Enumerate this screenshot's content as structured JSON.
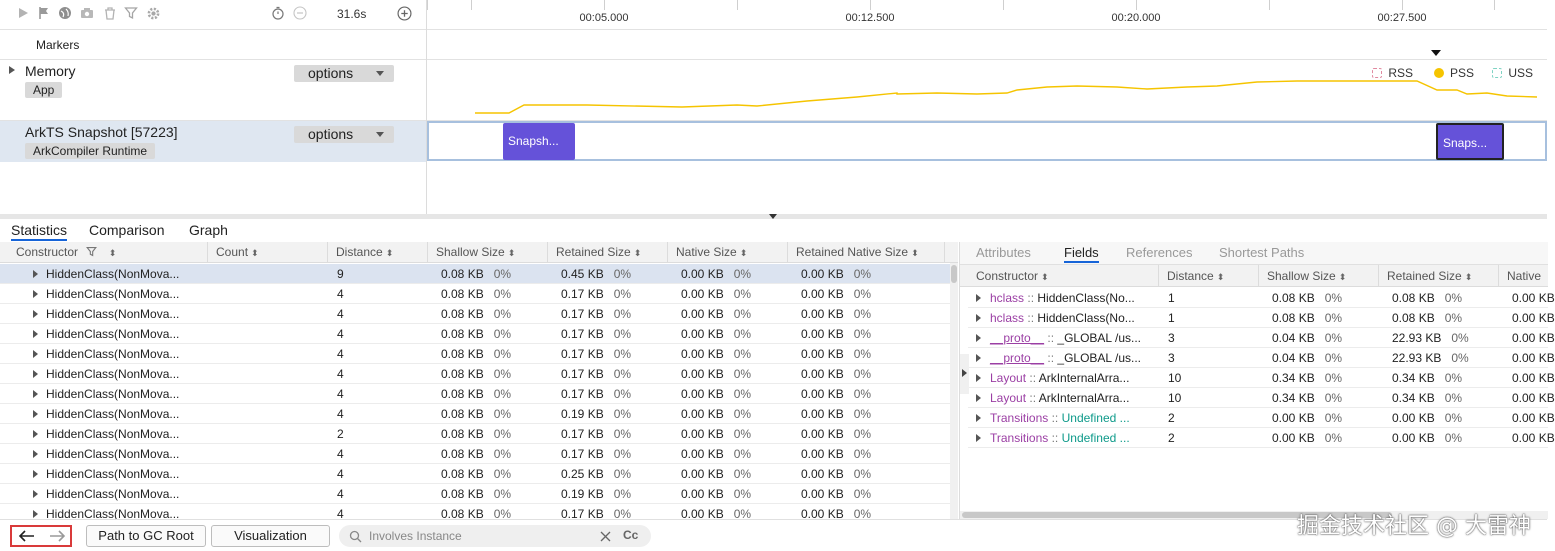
{
  "toolbar": {
    "duration": "31.6s",
    "icons": [
      "play-icon",
      "flag-icon",
      "globe-icon",
      "camera-icon",
      "delete-icon",
      "filter-icon",
      "gear-icon",
      "timer-icon",
      "minus-circle-icon",
      "plus-circle-icon"
    ]
  },
  "ruler": {
    "ticks": [
      "00:05.000",
      "00:12.500",
      "00:20.000",
      "00:27.500"
    ]
  },
  "lanes": {
    "markers_label": "Markers",
    "memory": {
      "title": "Memory",
      "tag": "App",
      "options": "options"
    },
    "snapshot": {
      "title": "ArkTS Snapshot [57223]",
      "tag": "ArkCompiler Runtime",
      "options": "options",
      "blocks": [
        "Snapsh...",
        "Snaps..."
      ]
    }
  },
  "legend": [
    {
      "label": "RSS",
      "color": "#e08aa0",
      "filled": false
    },
    {
      "label": "PSS",
      "color": "#f5c400",
      "filled": true
    },
    {
      "label": "USS",
      "color": "#7fd3c3",
      "filled": false
    }
  ],
  "memory_line_color": "#f5c400",
  "bottom_tabs": [
    "Statistics",
    "Comparison",
    "Graph"
  ],
  "left_table": {
    "columns": [
      "Constructor",
      "Count",
      "Distance",
      "Shallow Size",
      "Retained Size",
      "Native Size",
      "Retained Native Size"
    ],
    "rows": [
      {
        "name": "HiddenClass(NonMova...",
        "count": "",
        "distance": "9",
        "shallow": "0.08 KB",
        "shallow_pct": "0%",
        "retained": "0.45 KB",
        "retained_pct": "0%",
        "native": "0.00 KB",
        "native_pct": "0%",
        "rnative": "0.00 KB",
        "rnative_pct": "0%"
      },
      {
        "name": "HiddenClass(NonMova...",
        "count": "",
        "distance": "4",
        "shallow": "0.08 KB",
        "shallow_pct": "0%",
        "retained": "0.17 KB",
        "retained_pct": "0%",
        "native": "0.00 KB",
        "native_pct": "0%",
        "rnative": "0.00 KB",
        "rnative_pct": "0%"
      },
      {
        "name": "HiddenClass(NonMova...",
        "count": "",
        "distance": "4",
        "shallow": "0.08 KB",
        "shallow_pct": "0%",
        "retained": "0.17 KB",
        "retained_pct": "0%",
        "native": "0.00 KB",
        "native_pct": "0%",
        "rnative": "0.00 KB",
        "rnative_pct": "0%"
      },
      {
        "name": "HiddenClass(NonMova...",
        "count": "",
        "distance": "4",
        "shallow": "0.08 KB",
        "shallow_pct": "0%",
        "retained": "0.17 KB",
        "retained_pct": "0%",
        "native": "0.00 KB",
        "native_pct": "0%",
        "rnative": "0.00 KB",
        "rnative_pct": "0%"
      },
      {
        "name": "HiddenClass(NonMova...",
        "count": "",
        "distance": "4",
        "shallow": "0.08 KB",
        "shallow_pct": "0%",
        "retained": "0.17 KB",
        "retained_pct": "0%",
        "native": "0.00 KB",
        "native_pct": "0%",
        "rnative": "0.00 KB",
        "rnative_pct": "0%"
      },
      {
        "name": "HiddenClass(NonMova...",
        "count": "",
        "distance": "4",
        "shallow": "0.08 KB",
        "shallow_pct": "0%",
        "retained": "0.17 KB",
        "retained_pct": "0%",
        "native": "0.00 KB",
        "native_pct": "0%",
        "rnative": "0.00 KB",
        "rnative_pct": "0%"
      },
      {
        "name": "HiddenClass(NonMova...",
        "count": "",
        "distance": "4",
        "shallow": "0.08 KB",
        "shallow_pct": "0%",
        "retained": "0.17 KB",
        "retained_pct": "0%",
        "native": "0.00 KB",
        "native_pct": "0%",
        "rnative": "0.00 KB",
        "rnative_pct": "0%"
      },
      {
        "name": "HiddenClass(NonMova...",
        "count": "",
        "distance": "4",
        "shallow": "0.08 KB",
        "shallow_pct": "0%",
        "retained": "0.19 KB",
        "retained_pct": "0%",
        "native": "0.00 KB",
        "native_pct": "0%",
        "rnative": "0.00 KB",
        "rnative_pct": "0%"
      },
      {
        "name": "HiddenClass(NonMova...",
        "count": "",
        "distance": "2",
        "shallow": "0.08 KB",
        "shallow_pct": "0%",
        "retained": "0.17 KB",
        "retained_pct": "0%",
        "native": "0.00 KB",
        "native_pct": "0%",
        "rnative": "0.00 KB",
        "rnative_pct": "0%"
      },
      {
        "name": "HiddenClass(NonMova...",
        "count": "",
        "distance": "4",
        "shallow": "0.08 KB",
        "shallow_pct": "0%",
        "retained": "0.17 KB",
        "retained_pct": "0%",
        "native": "0.00 KB",
        "native_pct": "0%",
        "rnative": "0.00 KB",
        "rnative_pct": "0%"
      },
      {
        "name": "HiddenClass(NonMova...",
        "count": "",
        "distance": "4",
        "shallow": "0.08 KB",
        "shallow_pct": "0%",
        "retained": "0.25 KB",
        "retained_pct": "0%",
        "native": "0.00 KB",
        "native_pct": "0%",
        "rnative": "0.00 KB",
        "rnative_pct": "0%"
      },
      {
        "name": "HiddenClass(NonMova...",
        "count": "",
        "distance": "4",
        "shallow": "0.08 KB",
        "shallow_pct": "0%",
        "retained": "0.19 KB",
        "retained_pct": "0%",
        "native": "0.00 KB",
        "native_pct": "0%",
        "rnative": "0.00 KB",
        "rnative_pct": "0%"
      },
      {
        "name": "HiddenClass(NonMova...",
        "count": "",
        "distance": "4",
        "shallow": "0.08 KB",
        "shallow_pct": "0%",
        "retained": "0.17 KB",
        "retained_pct": "0%",
        "native": "0.00 KB",
        "native_pct": "0%",
        "rnative": "0.00 KB",
        "rnative_pct": "0%"
      }
    ]
  },
  "right_panel": {
    "tabs": [
      "Attributes",
      "Fields",
      "References",
      "Shortest Paths"
    ],
    "active_tab": "Fields",
    "columns": [
      "Constructor",
      "Distance",
      "Shallow Size",
      "Retained Size",
      "Native"
    ],
    "rows": [
      {
        "field": "hclass",
        "sep": "::",
        "value": "HiddenClass(No...",
        "value_style": "plain",
        "distance": "1",
        "shallow": "0.08 KB",
        "shallow_pct": "0%",
        "retained": "0.08 KB",
        "retained_pct": "0%",
        "native": "0.00 KB"
      },
      {
        "field": "hclass",
        "sep": "::",
        "value": "HiddenClass(No...",
        "value_style": "plain",
        "distance": "1",
        "shallow": "0.08 KB",
        "shallow_pct": "0%",
        "retained": "0.08 KB",
        "retained_pct": "0%",
        "native": "0.00 KB"
      },
      {
        "field": "__proto__",
        "sep": "::",
        "value": "_GLOBAL /us...",
        "value_style": "plain",
        "distance": "3",
        "shallow": "0.04 KB",
        "shallow_pct": "0%",
        "retained": "22.93 KB",
        "retained_pct": "0%",
        "native": "0.00 KB"
      },
      {
        "field": "__proto__",
        "sep": "::",
        "value": "_GLOBAL /us...",
        "value_style": "plain",
        "distance": "3",
        "shallow": "0.04 KB",
        "shallow_pct": "0%",
        "retained": "22.93 KB",
        "retained_pct": "0%",
        "native": "0.00 KB"
      },
      {
        "field": "Layout",
        "sep": "::",
        "value": "ArkInternalArra...",
        "value_style": "plain",
        "distance": "10",
        "shallow": "0.34 KB",
        "shallow_pct": "0%",
        "retained": "0.34 KB",
        "retained_pct": "0%",
        "native": "0.00 KB"
      },
      {
        "field": "Layout",
        "sep": "::",
        "value": "ArkInternalArra...",
        "value_style": "plain",
        "distance": "10",
        "shallow": "0.34 KB",
        "shallow_pct": "0%",
        "retained": "0.34 KB",
        "retained_pct": "0%",
        "native": "0.00 KB"
      },
      {
        "field": "Transitions",
        "sep": "::",
        "value": "Undefined ...",
        "value_style": "teal",
        "distance": "2",
        "shallow": "0.00 KB",
        "shallow_pct": "0%",
        "retained": "0.00 KB",
        "retained_pct": "0%",
        "native": "0.00 KB"
      },
      {
        "field": "Transitions",
        "sep": "::",
        "value": "Undefined ...",
        "value_style": "teal",
        "distance": "2",
        "shallow": "0.00 KB",
        "shallow_pct": "0%",
        "retained": "0.00 KB",
        "retained_pct": "0%",
        "native": "0.00 KB"
      }
    ]
  },
  "bottom_bar": {
    "path_btn": "Path to GC Root",
    "vis_btn": "Visualization",
    "search_placeholder": "Involves Instance",
    "case_label": "Cc",
    "watermark": "掘金技术社区 @ 大雷神"
  }
}
